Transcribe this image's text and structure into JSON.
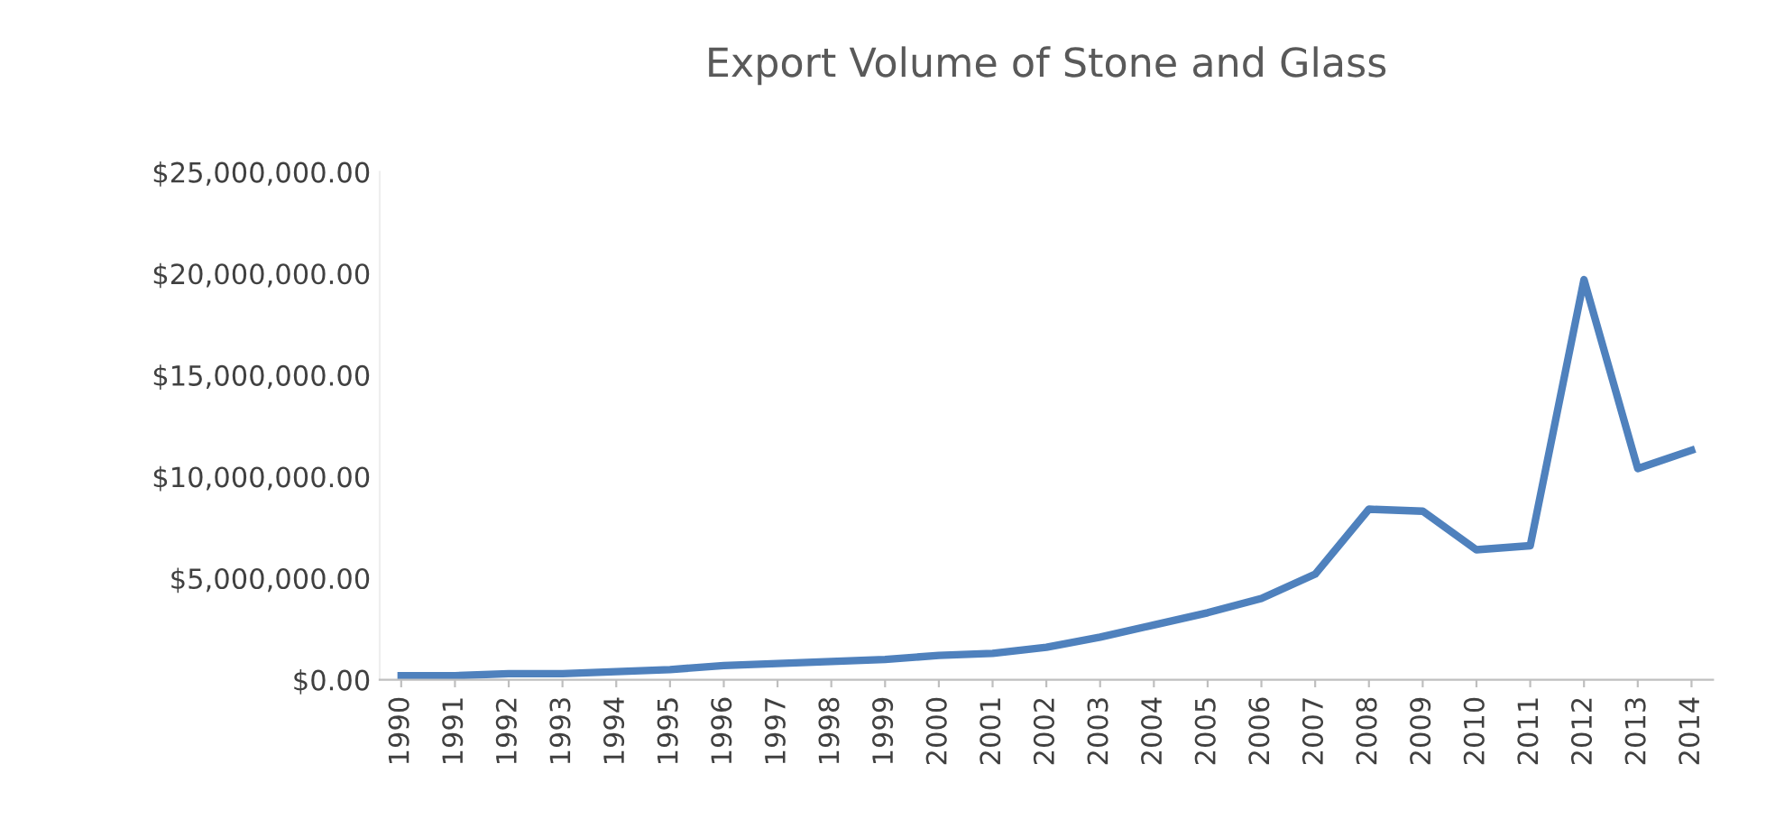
{
  "chart_data": {
    "type": "line",
    "title": "Export Volume of Stone and Glass",
    "categories": [
      "1990",
      "1991",
      "1992",
      "1993",
      "1994",
      "1995",
      "1996",
      "1997",
      "1998",
      "1999",
      "2000",
      "2001",
      "2002",
      "2003",
      "2004",
      "2005",
      "2006",
      "2007",
      "2008",
      "2009",
      "2010",
      "2011",
      "2012",
      "2013",
      "2014"
    ],
    "series": [
      {
        "color": "#4f81bd",
        "values": [
          200000,
          200000,
          300000,
          300000,
          400000,
          500000,
          700000,
          800000,
          900000,
          1000000,
          1200000,
          1300000,
          1600000,
          2100000,
          2700000,
          3300000,
          4000000,
          5200000,
          8400000,
          8300000,
          6400000,
          6600000,
          19700000,
          10400000,
          11300000
        ]
      }
    ],
    "ylim": [
      0,
      25000000
    ],
    "yticks": [
      {
        "value": 0,
        "label": "$0.00"
      },
      {
        "value": 5000000,
        "label": "$5,000,000.00"
      },
      {
        "value": 10000000,
        "label": "$10,000,000.00"
      },
      {
        "value": 15000000,
        "label": "$15,000,000.00"
      },
      {
        "value": 20000000,
        "label": "$20,000,000.00"
      },
      {
        "value": 25000000,
        "label": "$25,000,000.00"
      }
    ],
    "grid": false,
    "marker": "none",
    "line_style": "solid"
  }
}
